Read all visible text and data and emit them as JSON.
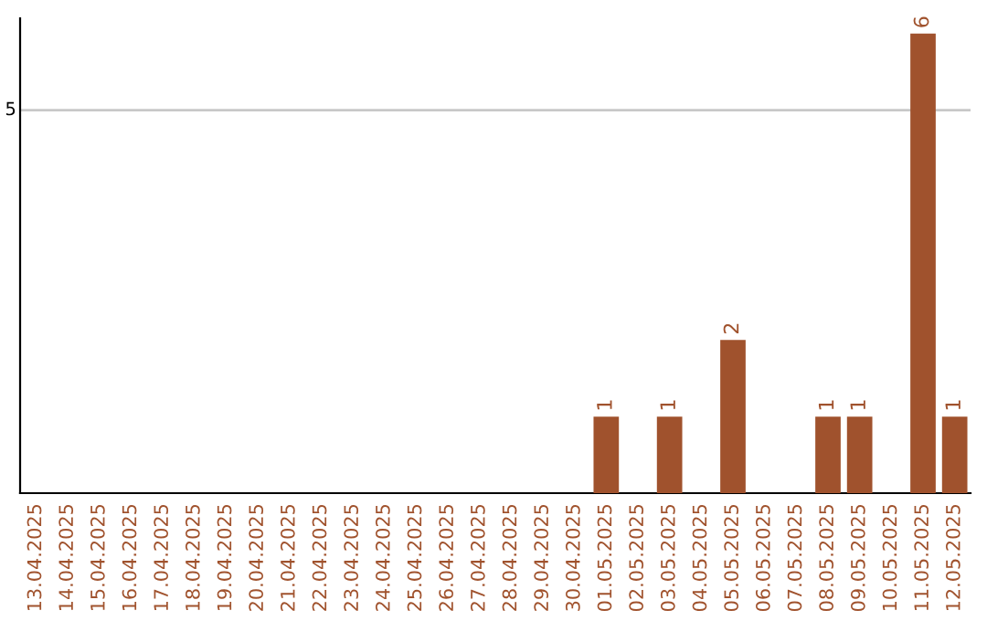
{
  "chart_data": {
    "type": "bar",
    "categories": [
      "13.04.2025",
      "14.04.2025",
      "15.04.2025",
      "16.04.2025",
      "17.04.2025",
      "18.04.2025",
      "19.04.2025",
      "20.04.2025",
      "21.04.2025",
      "22.04.2025",
      "23.04.2025",
      "24.04.2025",
      "25.04.2025",
      "26.04.2025",
      "27.04.2025",
      "28.04.2025",
      "29.04.2025",
      "30.04.2025",
      "01.05.2025",
      "02.05.2025",
      "03.05.2025",
      "04.05.2025",
      "05.05.2025",
      "06.05.2025",
      "07.05.2025",
      "08.05.2025",
      "09.05.2025",
      "10.05.2025",
      "11.05.2025",
      "12.05.2025"
    ],
    "values": [
      null,
      null,
      null,
      null,
      null,
      null,
      null,
      null,
      null,
      null,
      null,
      null,
      null,
      null,
      null,
      null,
      null,
      null,
      1,
      null,
      1,
      null,
      2,
      null,
      null,
      1,
      1,
      null,
      6,
      1
    ],
    "data_labels": true,
    "color": "#a0522d",
    "ylim": [
      0,
      6.2
    ],
    "ref_lines": [
      {
        "axis": "y",
        "value": 5,
        "label": "5",
        "color": "#c8c8c8"
      }
    ]
  }
}
